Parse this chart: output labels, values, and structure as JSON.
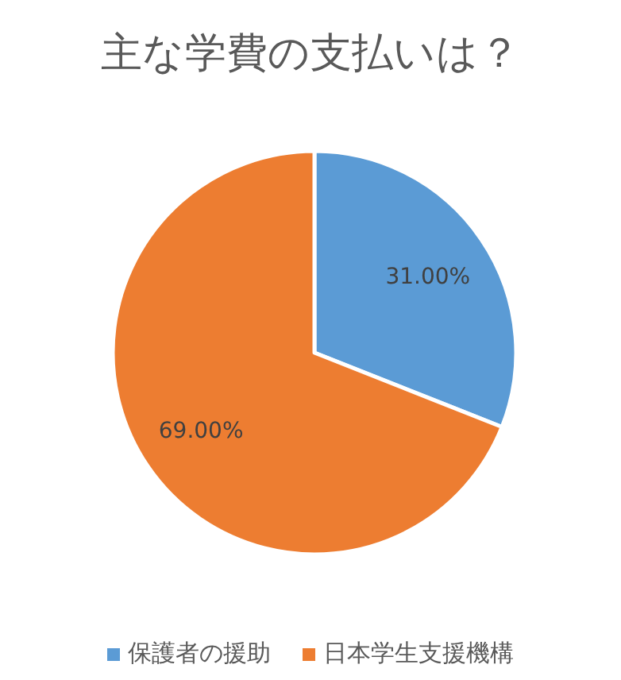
{
  "chart_data": {
    "type": "pie",
    "title": "主な学費の支払いは？",
    "categories": [
      "保護者の援助",
      "日本学生支援機構"
    ],
    "values": [
      31,
      69
    ],
    "colors": [
      "#5b9bd5",
      "#ed7d31"
    ],
    "value_labels": [
      "31.00%",
      "69.00%"
    ],
    "legend": "bottom"
  }
}
